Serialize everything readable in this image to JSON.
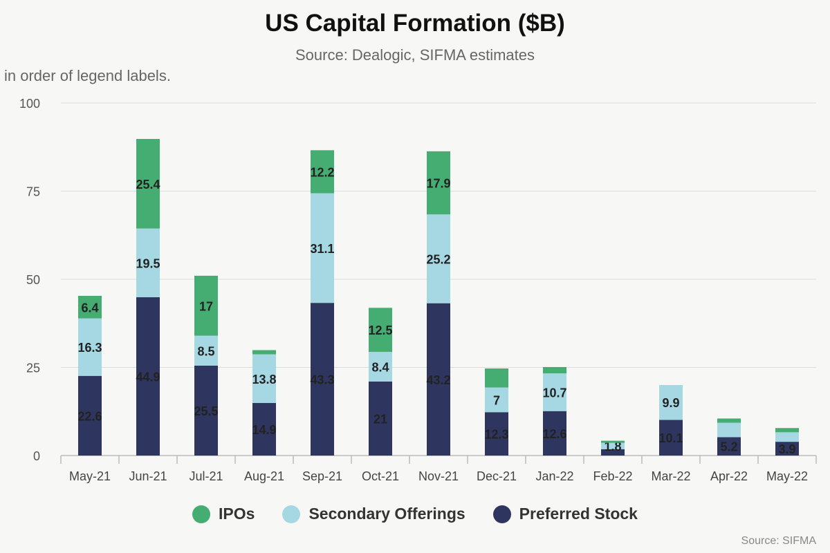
{
  "chart_data": {
    "type": "bar",
    "stacked": true,
    "title": "US Capital Formation ($B)",
    "subtitle": "Source: Dealogic, SIFMA estimates",
    "note": "in order of legend labels.",
    "credit": "Source: SIFMA",
    "xlabel": "",
    "ylabel": "",
    "ylim": [
      0,
      100
    ],
    "yticks": [
      0,
      25,
      50,
      75,
      100
    ],
    "grid": true,
    "legend_position": "bottom",
    "categories": [
      "May-21",
      "Jun-21",
      "Jul-21",
      "Aug-21",
      "Sep-21",
      "Oct-21",
      "Nov-21",
      "Dec-21",
      "Jan-22",
      "Feb-22",
      "Mar-22",
      "Apr-22",
      "May-22"
    ],
    "series": [
      {
        "name": "Preferred Stock",
        "color": "#2e3660",
        "values": [
          22.6,
          44.9,
          25.5,
          14.9,
          43.3,
          21,
          43.2,
          12.3,
          12.6,
          1.8,
          10.1,
          5.2,
          3.9
        ],
        "labels": [
          "22.6",
          "44.9",
          "25.5",
          "14.9",
          "43.3",
          "21",
          "43.2",
          "12.3",
          "12.6",
          "",
          "10.1",
          "5.2",
          "3.9"
        ]
      },
      {
        "name": "Secondary Offerings",
        "color": "#a6d8e3",
        "values": [
          16.3,
          19.5,
          8.5,
          13.8,
          31.1,
          8.4,
          25.2,
          7,
          10.7,
          1.8,
          9.9,
          4.1,
          2.7
        ],
        "labels": [
          "16.3",
          "19.5",
          "8.5",
          "13.8",
          "31.1",
          "8.4",
          "25.2",
          "7",
          "10.7",
          "1.8",
          "9.9",
          "",
          ""
        ]
      },
      {
        "name": "IPOs",
        "color": "#46ad72",
        "values": [
          6.4,
          25.4,
          17,
          1.2,
          12.2,
          12.5,
          17.9,
          5.4,
          1.8,
          0.6,
          0,
          1.2,
          1.2
        ],
        "labels": [
          "6.4",
          "25.4",
          "17",
          "",
          "12.2",
          "12.5",
          "17.9",
          "",
          "",
          "",
          "",
          "",
          ""
        ]
      }
    ],
    "legend": [
      "IPOs",
      "Secondary Offerings",
      "Preferred Stock"
    ],
    "legend_colors": [
      "#46ad72",
      "#a6d8e3",
      "#2e3660"
    ]
  }
}
